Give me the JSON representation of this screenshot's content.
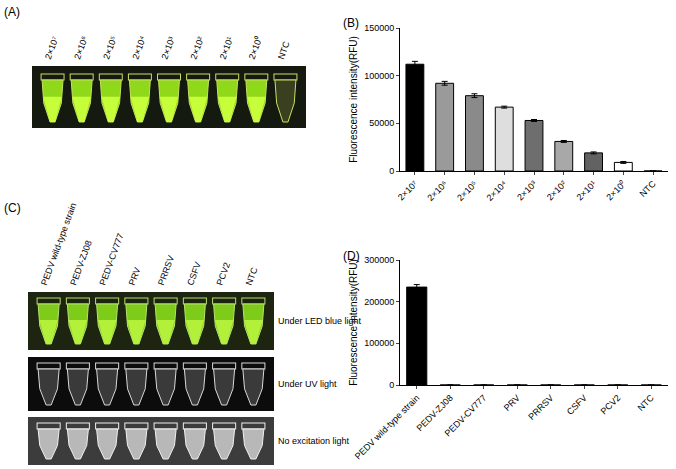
{
  "photos": [
    {
      "panel": "(A)",
      "lane_labels": [
        "2×10⁷",
        "2×10⁶",
        "2×10⁵",
        "2×10⁴",
        "2×10³",
        "2×10²",
        "2×10¹",
        "2×10⁰",
        "NTC"
      ]
    },
    {
      "panel": "(C)",
      "lane_labels": [
        "PEDV wild-type strain",
        "PEDV-ZJ08",
        "PEDV-CV777",
        "PRV",
        "PRRSV",
        "CSFV",
        "PCV2",
        "NTC"
      ],
      "captions": [
        "Under LED blue light",
        "Under UV light",
        "No excitation light"
      ]
    }
  ],
  "chart_data": [
    {
      "panel": "(B)",
      "type": "bar",
      "categories": [
        "2×10⁷",
        "2×10⁶",
        "2×10⁵",
        "2×10⁴",
        "2×10³",
        "2×10²",
        "2×10¹",
        "2×10⁰",
        "NTC"
      ],
      "values": [
        112000,
        92000,
        79000,
        67000,
        53000,
        31000,
        19000,
        9000,
        0
      ],
      "errors": [
        3000,
        2000,
        2000,
        1000,
        1000,
        1000,
        1000,
        1000,
        0
      ],
      "colors": [
        "#000000",
        "#9a9a9a",
        "#8a8a8a",
        "#dedede",
        "#6e6e6e",
        "#a8a8a8",
        "#626262",
        "#ffffff",
        "#ffffff"
      ],
      "y_label": "Fluorescence intensity(RFU)",
      "ylim": [
        0,
        150000
      ],
      "yticks": [
        0,
        50000,
        100000,
        150000
      ],
      "grid": false
    },
    {
      "panel": "(D)",
      "type": "bar",
      "categories": [
        "PEDV wild-type strain",
        "PEDV-ZJ08",
        "PEDV-CV777",
        "PRV",
        "PRRSV",
        "CSFV",
        "PCV2",
        "NTC"
      ],
      "values": [
        235000,
        0,
        0,
        0,
        0,
        0,
        0,
        0
      ],
      "errors": [
        6000,
        0,
        0,
        0,
        0,
        0,
        0,
        0
      ],
      "color": "#000000",
      "y_label": "Fluorescence intensity(RFU)",
      "ylim": [
        0,
        300000
      ],
      "yticks": [
        0,
        100000,
        200000,
        300000
      ],
      "grid": false
    }
  ]
}
